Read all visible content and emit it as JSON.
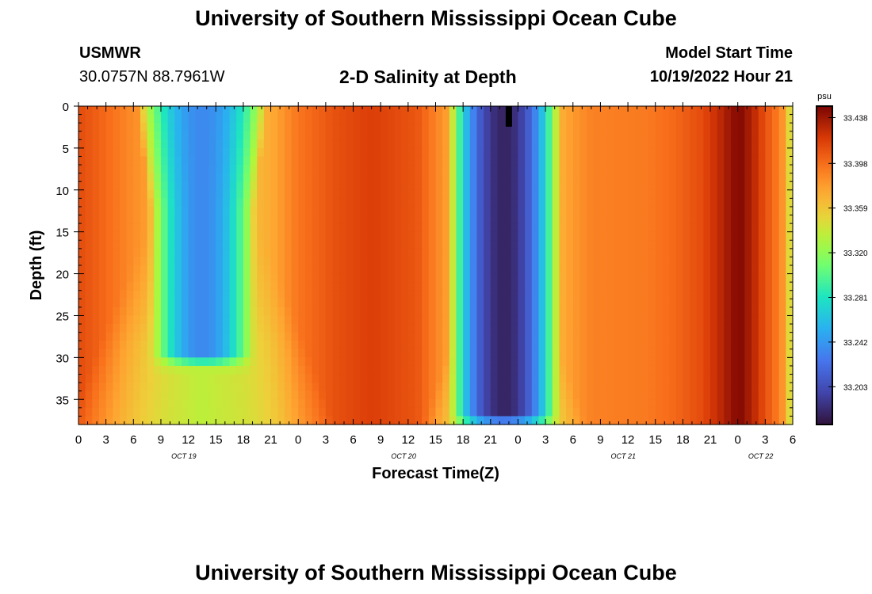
{
  "page": {
    "title_top": "University of Southern Mississippi Ocean Cube",
    "title_bottom": "University of Southern Mississippi Ocean Cube",
    "station_id": "USMWR",
    "station_coords": "30.0757N  88.7961W",
    "plot_subtitle": "2-D Salinity at Depth",
    "model_start_label": "Model Start Time",
    "model_start_value": "10/19/2022 Hour 21"
  },
  "chart_data": {
    "type": "heatmap",
    "title": "2-D Salinity at Depth",
    "xlabel": "Forecast Time(Z)",
    "ylabel": "Depth (ft)",
    "x_tick_labels": [
      "0",
      "3",
      "6",
      "9",
      "12",
      "15",
      "18",
      "21",
      "0",
      "3",
      "6",
      "9",
      "12",
      "15",
      "18",
      "21",
      "0",
      "3",
      "6",
      "9",
      "12",
      "15",
      "18",
      "21",
      "0",
      "3",
      "6"
    ],
    "x_tick_hours": [
      0,
      3,
      6,
      9,
      12,
      15,
      18,
      21,
      24,
      27,
      30,
      33,
      36,
      39,
      42,
      45,
      48,
      51,
      54,
      57,
      60,
      63,
      66,
      69,
      72,
      75,
      78
    ],
    "x_range_hours": [
      0,
      78
    ],
    "date_labels": [
      {
        "text": "OCT 19",
        "hour": 11.5
      },
      {
        "text": "OCT 20",
        "hour": 35.5
      },
      {
        "text": "OCT 21",
        "hour": 59.5
      },
      {
        "text": "OCT 22",
        "hour": 74.5
      }
    ],
    "y_tick_labels": [
      "0",
      "5",
      "10",
      "15",
      "20",
      "25",
      "30",
      "35"
    ],
    "y_ticks": [
      0,
      5,
      10,
      15,
      20,
      25,
      30,
      35
    ],
    "y_range_ft": [
      0,
      38
    ],
    "current_time_marker_hour": 47,
    "colorbar": {
      "unit": "psu",
      "min": 33.17,
      "max": 33.448,
      "tick_values": [
        33.438,
        33.398,
        33.359,
        33.32,
        33.281,
        33.242,
        33.203
      ],
      "tick_labels": [
        "33.438",
        "33.398",
        "33.359",
        "33.320",
        "33.281",
        "33.242",
        "33.203"
      ]
    },
    "salinity_model": {
      "background": [
        {
          "hour": 0,
          "psu": 33.412
        },
        {
          "hour": 3,
          "psu": 33.4
        },
        {
          "hour": 6,
          "psu": 33.385
        },
        {
          "hour": 9,
          "psu": 33.372
        },
        {
          "hour": 18,
          "psu": 33.36
        },
        {
          "hour": 21,
          "psu": 33.372
        },
        {
          "hour": 24,
          "psu": 33.395
        },
        {
          "hour": 28,
          "psu": 33.41
        },
        {
          "hour": 32,
          "psu": 33.418
        },
        {
          "hour": 37,
          "psu": 33.408
        },
        {
          "hour": 40,
          "psu": 33.38
        },
        {
          "hour": 42,
          "psu": 33.355
        },
        {
          "hour": 44,
          "psu": 33.345
        },
        {
          "hour": 50,
          "psu": 33.355
        },
        {
          "hour": 52,
          "psu": 33.365
        },
        {
          "hour": 54,
          "psu": 33.38
        },
        {
          "hour": 56,
          "psu": 33.39
        },
        {
          "hour": 62,
          "psu": 33.393
        },
        {
          "hour": 65,
          "psu": 33.4
        },
        {
          "hour": 68,
          "psu": 33.412
        },
        {
          "hour": 70,
          "psu": 33.428
        },
        {
          "hour": 71.5,
          "psu": 33.442
        },
        {
          "hour": 72.5,
          "psu": 33.444
        },
        {
          "hour": 74,
          "psu": 33.425
        },
        {
          "hour": 75,
          "psu": 33.41
        },
        {
          "hour": 76,
          "psu": 33.398
        },
        {
          "hour": 77,
          "psu": 33.38
        },
        {
          "hour": 77.6,
          "psu": 33.35
        },
        {
          "hour": 78,
          "psu": 33.33
        }
      ],
      "troughs": [
        {
          "center_hour": 13.5,
          "min_psu": 33.235,
          "half_width_hours": 5.8,
          "floor_ft": 29.5,
          "edge_ft": 2.5,
          "surface_widen_hours": 1.2
        },
        {
          "center_hour": 46.5,
          "min_psu": 33.18,
          "half_width_hours": 6.0,
          "floor_ft": 36.5,
          "edge_ft": 3.5,
          "surface_widen_hours": 0.0
        }
      ],
      "fans": [
        {
          "center_hour": 13.5,
          "min_psu": 33.335,
          "start_ft": 12,
          "inner_hours": 5.5,
          "outer_hours": 14.5,
          "bottom_extent_ft": 38
        },
        {
          "center_hour": 46.5,
          "min_psu": 33.33,
          "start_ft": 22,
          "inner_hours": 3.5,
          "outer_hours": 9.0,
          "bottom_extent_ft": 38
        }
      ]
    }
  }
}
